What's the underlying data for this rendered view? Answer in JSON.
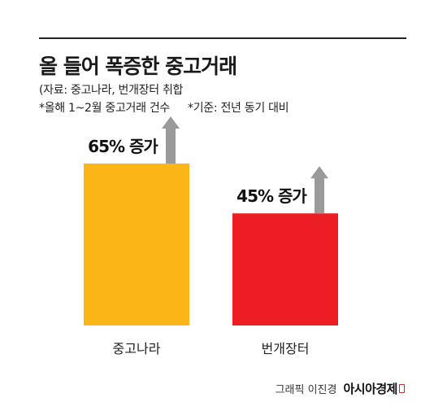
{
  "header": {
    "title": "올 들어 폭증한 중고거래",
    "source": "(자료: 중고나라, 번개장터 취합",
    "note_period": "*올해 1~2월 중고거래 건수",
    "note_basis": "*기준: 전년 동기 대비"
  },
  "footer": {
    "credit": "그래픽 이진경",
    "brand": "아시아경제"
  },
  "colors": {
    "bar_junggonara": "#fbb516",
    "bar_bungaejangter": "#ec1e24",
    "arrow": "#9a9a9a",
    "rule": "#222222"
  },
  "chart_data": {
    "type": "bar",
    "categories": [
      "중고나라",
      "번개장터"
    ],
    "values": [
      65,
      45
    ],
    "data_labels": [
      "65% 증가",
      "45% 증가"
    ],
    "unit": "%",
    "title": "올 들어 폭증한 중고거래",
    "xlabel": "",
    "ylabel": "",
    "ylim": [
      0,
      65
    ],
    "grid": false
  }
}
